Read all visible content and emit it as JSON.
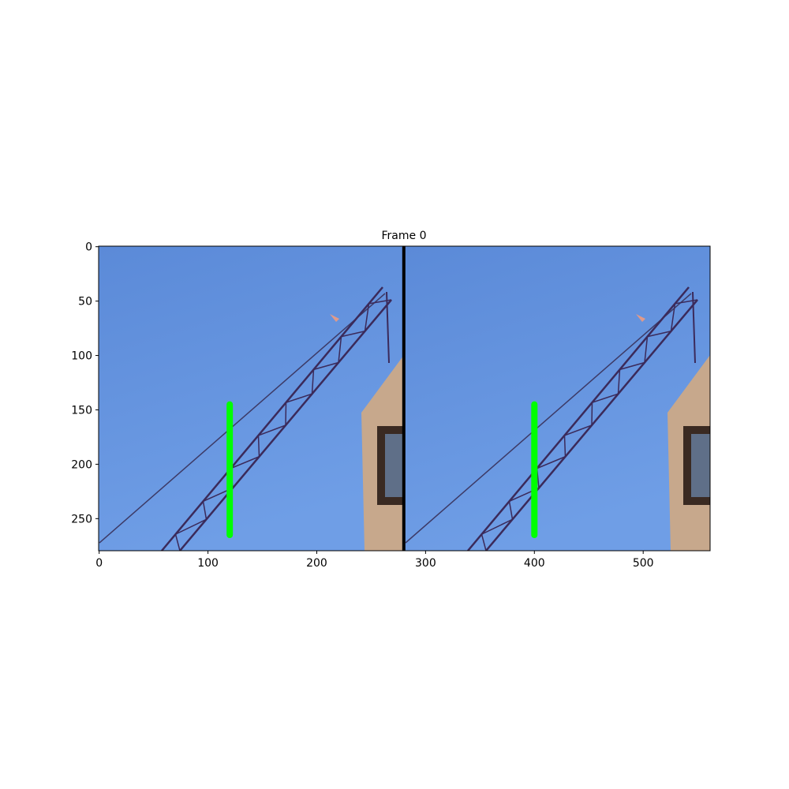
{
  "chart_data": {
    "type": "image",
    "title": "Frame 0",
    "xlim": [
      -0.5,
      561.5
    ],
    "ylim": [
      279.5,
      -0.5
    ],
    "xticks": [
      0,
      100,
      200,
      300,
      400,
      500
    ],
    "yticks": [
      0,
      50,
      100,
      150,
      200,
      250
    ],
    "lines": [
      {
        "color": "#000000",
        "x": [
          280,
          280
        ],
        "y": [
          -0.5,
          279.5
        ]
      },
      {
        "color": "#00ff00",
        "x": [
          120,
          120
        ],
        "y": [
          145,
          265
        ]
      },
      {
        "color": "#00ff00",
        "x": [
          400,
          400
        ],
        "y": [
          145,
          265
        ]
      }
    ]
  }
}
